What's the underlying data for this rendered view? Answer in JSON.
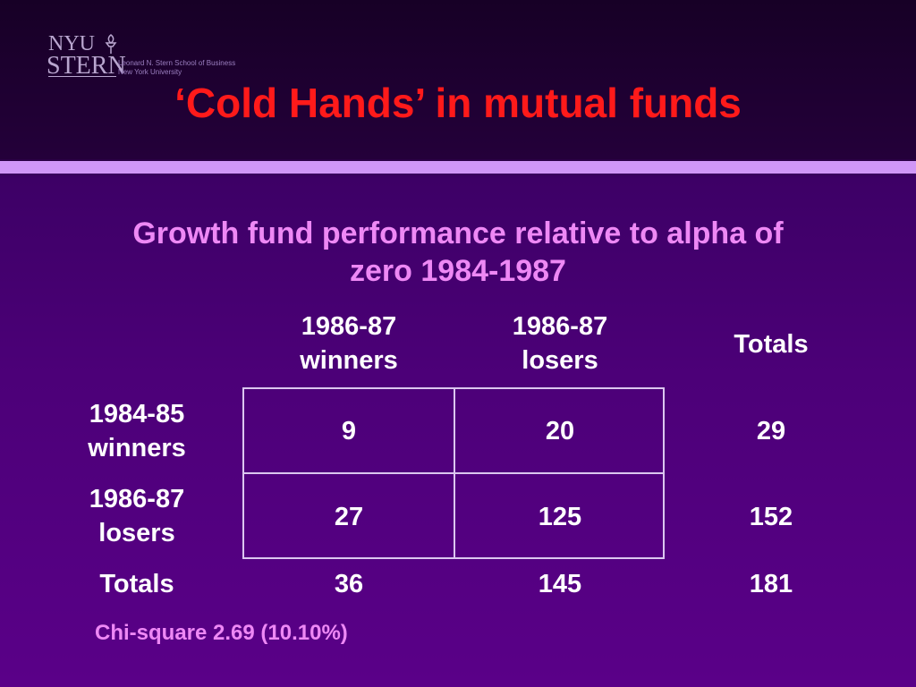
{
  "slide": {
    "logo": {
      "nyu": "NYU",
      "stern": "STERN",
      "school_line1": "Leonard N. Stern School of Business",
      "school_line2": "New York University"
    },
    "title": "‘Cold Hands’ in mutual funds",
    "subtitle_line1": "Growth fund performance relative to alpha of",
    "subtitle_line2": "zero 1984-1987",
    "table": {
      "col_headers": [
        {
          "line1": "1986-87",
          "line2": "winners"
        },
        {
          "line1": "1986-87",
          "line2": "losers"
        },
        {
          "line1": "Totals",
          "line2": ""
        }
      ],
      "rows": [
        {
          "line1": "1984-85",
          "line2": "winners",
          "values": [
            "9",
            "20",
            "29"
          ]
        },
        {
          "line1": "1986-87",
          "line2": "losers",
          "values": [
            "27",
            "125",
            "152"
          ]
        },
        {
          "line1": "Totals",
          "line2": "",
          "values": [
            "36",
            "145",
            "181"
          ]
        }
      ]
    },
    "footnote": "Chi-square 2.69 (10.10%)"
  },
  "colors": {
    "title": "#ff1a1a",
    "subtitle": "#ee88f5",
    "band": "#d097f7",
    "grid_lines": "#dcc7f0"
  }
}
